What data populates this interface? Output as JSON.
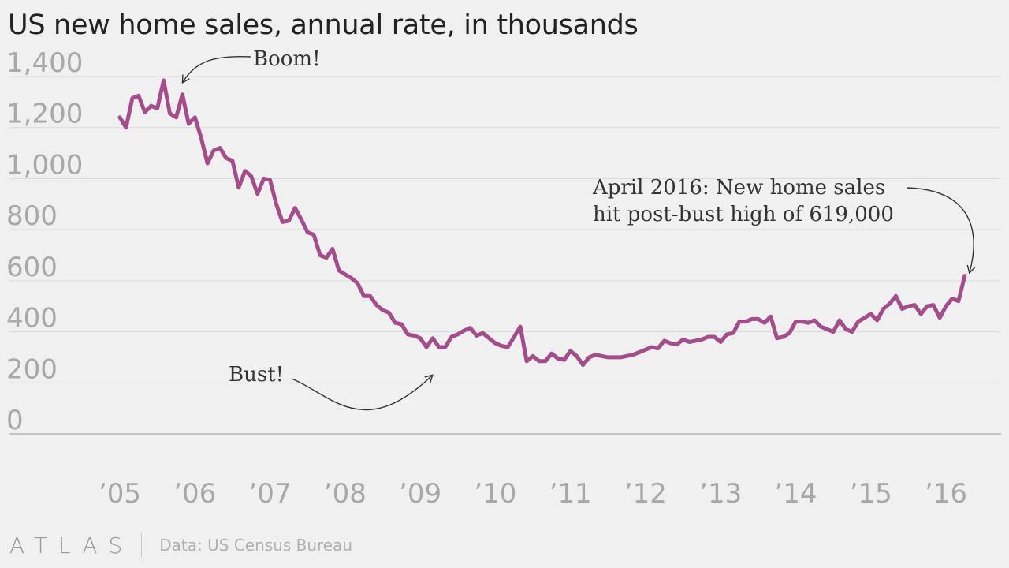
{
  "title": "US new home sales, annual rate, in thousands",
  "source": "Data: US Census Bureau",
  "brand": "ATLAS",
  "colors": {
    "line": "#a34d8a",
    "axis_text": "#a8a8a8",
    "grid": "#dcdcdc",
    "baseline": "#b4b4b4",
    "annotation": "#333333"
  },
  "chart_data": {
    "type": "line",
    "ylim": [
      0,
      1400
    ],
    "y_ticks": [
      {
        "value": 0,
        "label": "0"
      },
      {
        "value": 200,
        "label": "200"
      },
      {
        "value": 400,
        "label": "400"
      },
      {
        "value": 600,
        "label": "600"
      },
      {
        "value": 800,
        "label": "800"
      },
      {
        "value": 1000,
        "label": "1,000"
      },
      {
        "value": 1200,
        "label": "1,200"
      },
      {
        "value": 1400,
        "label": "1,400"
      }
    ],
    "x_ticks": [
      {
        "value": "2005-01",
        "label": "’05"
      },
      {
        "value": "2006-01",
        "label": "’06"
      },
      {
        "value": "2007-01",
        "label": "’07"
      },
      {
        "value": "2008-01",
        "label": "’08"
      },
      {
        "value": "2009-01",
        "label": "’09"
      },
      {
        "value": "2010-01",
        "label": "’10"
      },
      {
        "value": "2011-01",
        "label": "’11"
      },
      {
        "value": "2012-01",
        "label": "’12"
      },
      {
        "value": "2013-01",
        "label": "’13"
      },
      {
        "value": "2014-01",
        "label": "’14"
      },
      {
        "value": "2015-01",
        "label": "’15"
      },
      {
        "value": "2016-01",
        "label": "’16"
      }
    ],
    "grid": true,
    "series": [
      {
        "x": [
          "2005-01",
          "2005-02",
          "2005-03",
          "2005-04",
          "2005-05",
          "2005-06",
          "2005-07",
          "2005-08",
          "2005-09",
          "2005-10",
          "2005-11",
          "2005-12",
          "2006-01",
          "2006-02",
          "2006-03",
          "2006-04",
          "2006-05",
          "2006-06",
          "2006-07",
          "2006-08",
          "2006-09",
          "2006-10",
          "2006-11",
          "2006-12",
          "2007-01",
          "2007-02",
          "2007-03",
          "2007-04",
          "2007-05",
          "2007-06",
          "2007-07",
          "2007-08",
          "2007-09",
          "2007-10",
          "2007-11",
          "2007-12",
          "2008-01",
          "2008-02",
          "2008-03",
          "2008-04",
          "2008-05",
          "2008-06",
          "2008-07",
          "2008-08",
          "2008-09",
          "2008-10",
          "2008-11",
          "2008-12",
          "2009-01",
          "2009-02",
          "2009-03",
          "2009-04",
          "2009-05",
          "2009-06",
          "2009-07",
          "2009-08",
          "2009-09",
          "2009-10",
          "2009-11",
          "2009-12",
          "2010-01",
          "2010-02",
          "2010-03",
          "2010-04",
          "2010-05",
          "2010-06",
          "2010-07",
          "2010-08",
          "2010-09",
          "2010-10",
          "2010-11",
          "2010-12",
          "2011-01",
          "2011-02",
          "2011-03",
          "2011-04",
          "2011-05",
          "2011-06",
          "2011-07",
          "2011-08",
          "2011-09",
          "2011-10",
          "2011-11",
          "2011-12",
          "2012-01",
          "2012-02",
          "2012-03",
          "2012-04",
          "2012-05",
          "2012-06",
          "2012-07",
          "2012-08",
          "2012-09",
          "2012-10",
          "2012-11",
          "2012-12",
          "2013-01",
          "2013-02",
          "2013-03",
          "2013-04",
          "2013-05",
          "2013-06",
          "2013-07",
          "2013-08",
          "2013-09",
          "2013-10",
          "2013-11",
          "2013-12",
          "2014-01",
          "2014-02",
          "2014-03",
          "2014-04",
          "2014-05",
          "2014-06",
          "2014-07",
          "2014-08",
          "2014-09",
          "2014-10",
          "2014-11",
          "2014-12",
          "2015-01",
          "2015-02",
          "2015-03",
          "2015-04",
          "2015-05",
          "2015-06",
          "2015-07",
          "2015-08",
          "2015-09",
          "2015-10",
          "2015-11",
          "2015-12",
          "2016-01",
          "2016-02",
          "2016-03",
          "2016-04"
        ],
        "values": [
          1240,
          1200,
          1315,
          1325,
          1260,
          1285,
          1275,
          1385,
          1255,
          1240,
          1330,
          1215,
          1240,
          1160,
          1060,
          1110,
          1120,
          1080,
          1070,
          965,
          1030,
          1010,
          940,
          1000,
          995,
          900,
          830,
          835,
          885,
          840,
          790,
          780,
          700,
          690,
          725,
          640,
          625,
          610,
          590,
          540,
          540,
          505,
          485,
          475,
          435,
          430,
          390,
          385,
          375,
          340,
          375,
          340,
          340,
          380,
          390,
          405,
          415,
          385,
          395,
          375,
          355,
          345,
          340,
          380,
          420,
          285,
          305,
          285,
          285,
          315,
          295,
          290,
          325,
          305,
          270,
          300,
          310,
          305,
          300,
          300,
          300,
          305,
          310,
          320,
          330,
          340,
          335,
          365,
          355,
          350,
          370,
          360,
          365,
          370,
          380,
          380,
          360,
          390,
          395,
          440,
          440,
          450,
          450,
          435,
          460,
          375,
          380,
          395,
          440,
          440,
          435,
          445,
          420,
          410,
          400,
          445,
          410,
          400,
          440,
          455,
          470,
          445,
          490,
          510,
          540,
          490,
          500,
          505,
          470,
          500,
          505,
          455,
          500,
          530,
          520,
          619
        ]
      }
    ],
    "annotations": [
      {
        "text": "Boom!"
      },
      {
        "text": "Bust!"
      },
      {
        "lines": [
          "April 2016: New home sales",
          "hit post-bust high of 619,000"
        ]
      }
    ]
  }
}
